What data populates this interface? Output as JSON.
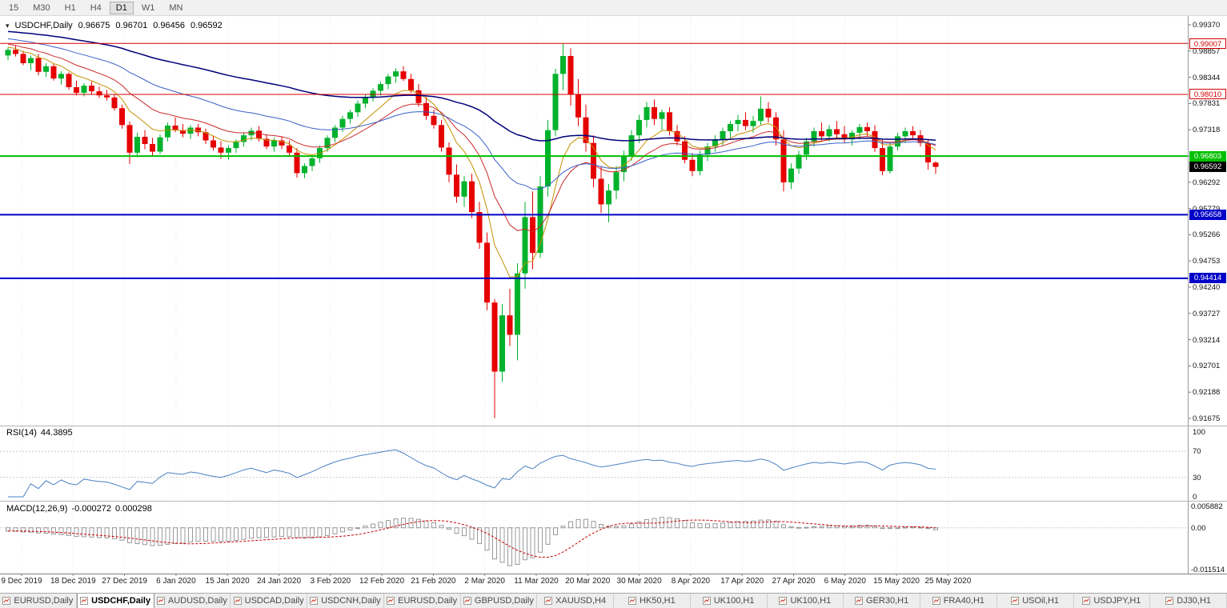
{
  "toolbar": {
    "periods": [
      "15",
      "M30",
      "H1",
      "H4",
      "D1",
      "W1",
      "MN"
    ],
    "active_period": "D1"
  },
  "window": {
    "title_icon": "▾"
  },
  "chart_data": {
    "type": "candlestick",
    "symbol_label": "USDCHF,Daily",
    "ohlc": {
      "open": "0.96675",
      "high": "0.96701",
      "low": "0.96456",
      "close": "0.96592"
    },
    "price_axis_labels": [
      "0.99370",
      "0.98857",
      "0.98344",
      "0.97831",
      "0.97318",
      "0.96805",
      "0.96292",
      "0.95779",
      "0.95266",
      "0.94753",
      "0.94240",
      "0.93727",
      "0.93214",
      "0.92701",
      "0.92188",
      "0.91675"
    ],
    "price_axis_range": [
      0.91675,
      0.9937
    ],
    "hlines": [
      {
        "price": 0.99007,
        "label": "0.99007",
        "color": "#d40000",
        "width": 1,
        "tag_style": "outline"
      },
      {
        "price": 0.9801,
        "label": "0.98010",
        "color": "#d40000",
        "width": 1,
        "tag_style": "outline"
      },
      {
        "price": 0.96803,
        "label": "0.96803",
        "color": "#00c000",
        "width": 2,
        "tag_style": "solid"
      },
      {
        "price": 0.95658,
        "label": "0.95658",
        "color": "#0000c8",
        "width": 2,
        "tag_style": "solid"
      },
      {
        "price": 0.94414,
        "label": "0.94414",
        "color": "#0000c8",
        "width": 2,
        "tag_style": "solid"
      }
    ],
    "current_price": {
      "price": 0.96592,
      "label": "0.96592",
      "color": "#000000"
    },
    "date_labels": [
      "9 Dec 2019",
      "18 Dec 2019",
      "27 Dec 2019",
      "6 Jan 2020",
      "15 Jan 2020",
      "24 Jan 2020",
      "3 Feb 2020",
      "12 Feb 2020",
      "21 Feb 2020",
      "2 Mar 2020",
      "11 Mar 2020",
      "20 Mar 2020",
      "30 Mar 2020",
      "8 Apr 2020",
      "17 Apr 2020",
      "27 Apr 2020",
      "6 May 2020",
      "15 May 2020",
      "25 May 2020"
    ],
    "up_color": "#00b22c",
    "down_color": "#e60000",
    "ma_colors": {
      "fast": "#c49000",
      "medium": "#cc2929",
      "slow": "#3a5fc8",
      "slower": "#00007a"
    },
    "candles": [
      [
        0.9877,
        0.9893,
        0.9868,
        0.9888
      ],
      [
        0.9888,
        0.9896,
        0.9875,
        0.988
      ],
      [
        0.988,
        0.9886,
        0.9858,
        0.9862
      ],
      [
        0.9862,
        0.9877,
        0.9848,
        0.9872
      ],
      [
        0.9872,
        0.988,
        0.9838,
        0.9845
      ],
      [
        0.9845,
        0.9862,
        0.9835,
        0.9856
      ],
      [
        0.9856,
        0.9861,
        0.9828,
        0.9832
      ],
      [
        0.9832,
        0.9846,
        0.982,
        0.9841
      ],
      [
        0.9841,
        0.9844,
        0.981,
        0.9815
      ],
      [
        0.9815,
        0.9828,
        0.9799,
        0.9804
      ],
      [
        0.9804,
        0.9823,
        0.9797,
        0.9818
      ],
      [
        0.9818,
        0.9826,
        0.9801,
        0.9807
      ],
      [
        0.9807,
        0.9816,
        0.9794,
        0.9799
      ],
      [
        0.9799,
        0.981,
        0.9789,
        0.9795
      ],
      [
        0.9795,
        0.9801,
        0.9769,
        0.9774
      ],
      [
        0.9774,
        0.9781,
        0.9734,
        0.9741
      ],
      [
        0.9741,
        0.9748,
        0.9665,
        0.9687
      ],
      [
        0.9687,
        0.9726,
        0.9678,
        0.9718
      ],
      [
        0.9718,
        0.9731,
        0.9694,
        0.9704
      ],
      [
        0.9704,
        0.9716,
        0.9679,
        0.9689
      ],
      [
        0.9689,
        0.9723,
        0.9684,
        0.9717
      ],
      [
        0.9717,
        0.9746,
        0.9709,
        0.974
      ],
      [
        0.974,
        0.9756,
        0.9727,
        0.9731
      ],
      [
        0.9731,
        0.9743,
        0.9717,
        0.9724
      ],
      [
        0.9724,
        0.9741,
        0.9714,
        0.9736
      ],
      [
        0.9736,
        0.9743,
        0.9719,
        0.9727
      ],
      [
        0.9727,
        0.9734,
        0.9704,
        0.9711
      ],
      [
        0.9711,
        0.972,
        0.9691,
        0.9697
      ],
      [
        0.9697,
        0.9709,
        0.9675,
        0.9687
      ],
      [
        0.9687,
        0.9701,
        0.9673,
        0.9696
      ],
      [
        0.9696,
        0.9713,
        0.9687,
        0.9708
      ],
      [
        0.9708,
        0.9726,
        0.9699,
        0.9721
      ],
      [
        0.9721,
        0.9736,
        0.9711,
        0.973
      ],
      [
        0.973,
        0.9739,
        0.9709,
        0.9714
      ],
      [
        0.9714,
        0.9723,
        0.9694,
        0.9699
      ],
      [
        0.9699,
        0.9716,
        0.9689,
        0.9711
      ],
      [
        0.9711,
        0.9719,
        0.9694,
        0.9701
      ],
      [
        0.9701,
        0.9711,
        0.9679,
        0.9687
      ],
      [
        0.9687,
        0.9696,
        0.9638,
        0.9647
      ],
      [
        0.9647,
        0.9666,
        0.9637,
        0.9661
      ],
      [
        0.9661,
        0.9681,
        0.9651,
        0.9676
      ],
      [
        0.9676,
        0.9701,
        0.9667,
        0.9696
      ],
      [
        0.9696,
        0.9721,
        0.9689,
        0.9716
      ],
      [
        0.9716,
        0.9741,
        0.9707,
        0.9736
      ],
      [
        0.9736,
        0.9759,
        0.9727,
        0.9753
      ],
      [
        0.9753,
        0.9771,
        0.9744,
        0.9766
      ],
      [
        0.9766,
        0.9789,
        0.9757,
        0.9783
      ],
      [
        0.9783,
        0.9801,
        0.9774,
        0.9796
      ],
      [
        0.9796,
        0.9813,
        0.9787,
        0.9808
      ],
      [
        0.9808,
        0.9826,
        0.9799,
        0.9821
      ],
      [
        0.9821,
        0.9841,
        0.9811,
        0.9836
      ],
      [
        0.9836,
        0.9852,
        0.9824,
        0.9846
      ],
      [
        0.9846,
        0.9856,
        0.9827,
        0.9831
      ],
      [
        0.9831,
        0.9841,
        0.9804,
        0.9809
      ],
      [
        0.9809,
        0.9821,
        0.9777,
        0.9784
      ],
      [
        0.9784,
        0.9796,
        0.9751,
        0.9759
      ],
      [
        0.9759,
        0.9771,
        0.9734,
        0.9741
      ],
      [
        0.9741,
        0.9751,
        0.9689,
        0.9697
      ],
      [
        0.9697,
        0.9707,
        0.9629,
        0.9644
      ],
      [
        0.9644,
        0.9664,
        0.9589,
        0.9601
      ],
      [
        0.9601,
        0.9641,
        0.9581,
        0.9631
      ],
      [
        0.9631,
        0.9646,
        0.9559,
        0.9571
      ],
      [
        0.9571,
        0.9591,
        0.9499,
        0.9511
      ],
      [
        0.9511,
        0.9531,
        0.9379,
        0.9394
      ],
      [
        0.9394,
        0.9401,
        0.9168,
        0.9259
      ],
      [
        0.9259,
        0.9391,
        0.9239,
        0.9369
      ],
      [
        0.9369,
        0.9421,
        0.9309,
        0.9331
      ],
      [
        0.9331,
        0.9471,
        0.9281,
        0.9451
      ],
      [
        0.9451,
        0.9591,
        0.9421,
        0.9561
      ],
      [
        0.9561,
        0.9611,
        0.9459,
        0.9491
      ],
      [
        0.9491,
        0.9641,
        0.9481,
        0.9621
      ],
      [
        0.9621,
        0.9751,
        0.9601,
        0.9731
      ],
      [
        0.9731,
        0.9851,
        0.9719,
        0.9841
      ],
      [
        0.9841,
        0.9901,
        0.9809,
        0.9876
      ],
      [
        0.9876,
        0.9891,
        0.9779,
        0.9801
      ],
      [
        0.9801,
        0.9831,
        0.9739,
        0.9756
      ],
      [
        0.9756,
        0.9781,
        0.9689,
        0.9706
      ],
      [
        0.9706,
        0.9721,
        0.9619,
        0.9636
      ],
      [
        0.9636,
        0.9661,
        0.9569,
        0.9586
      ],
      [
        0.9586,
        0.9626,
        0.9551,
        0.9613
      ],
      [
        0.9613,
        0.9661,
        0.9596,
        0.9649
      ],
      [
        0.9649,
        0.9691,
        0.9631,
        0.9681
      ],
      [
        0.9681,
        0.9731,
        0.9671,
        0.9721
      ],
      [
        0.9721,
        0.9761,
        0.9706,
        0.9751
      ],
      [
        0.9751,
        0.9786,
        0.9736,
        0.9776
      ],
      [
        0.9776,
        0.9791,
        0.9741,
        0.9753
      ],
      [
        0.9753,
        0.9771,
        0.9731,
        0.9766
      ],
      [
        0.9766,
        0.9776,
        0.9721,
        0.9729
      ],
      [
        0.9729,
        0.9741,
        0.9701,
        0.9709
      ],
      [
        0.9709,
        0.9719,
        0.9666,
        0.9673
      ],
      [
        0.9673,
        0.9686,
        0.9641,
        0.9651
      ],
      [
        0.9651,
        0.9691,
        0.9643,
        0.9683
      ],
      [
        0.9683,
        0.9706,
        0.9671,
        0.9699
      ],
      [
        0.9699,
        0.9721,
        0.9689,
        0.9713
      ],
      [
        0.9713,
        0.9736,
        0.9701,
        0.9729
      ],
      [
        0.9729,
        0.9749,
        0.9716,
        0.9743
      ],
      [
        0.9743,
        0.9761,
        0.9729,
        0.9751
      ],
      [
        0.9751,
        0.9766,
        0.9731,
        0.9739
      ],
      [
        0.9739,
        0.9759,
        0.9726,
        0.9749
      ],
      [
        0.9749,
        0.9797,
        0.9741,
        0.9773
      ],
      [
        0.9773,
        0.9786,
        0.9746,
        0.9756
      ],
      [
        0.9756,
        0.9766,
        0.9701,
        0.9713
      ],
      [
        0.9713,
        0.9731,
        0.9611,
        0.9629
      ],
      [
        0.9629,
        0.9666,
        0.9616,
        0.9656
      ],
      [
        0.9656,
        0.9691,
        0.9646,
        0.9683
      ],
      [
        0.9683,
        0.9716,
        0.9673,
        0.9709
      ],
      [
        0.9709,
        0.9736,
        0.9699,
        0.9729
      ],
      [
        0.9729,
        0.9746,
        0.9711,
        0.9719
      ],
      [
        0.9719,
        0.9741,
        0.9709,
        0.9733
      ],
      [
        0.9733,
        0.9749,
        0.9716,
        0.9723
      ],
      [
        0.9723,
        0.9739,
        0.9706,
        0.9713
      ],
      [
        0.9713,
        0.9731,
        0.9701,
        0.9726
      ],
      [
        0.9726,
        0.9743,
        0.9713,
        0.9737
      ],
      [
        0.9737,
        0.9746,
        0.9719,
        0.9729
      ],
      [
        0.9729,
        0.9741,
        0.9689,
        0.9696
      ],
      [
        0.9696,
        0.9713,
        0.9643,
        0.9651
      ],
      [
        0.9651,
        0.9706,
        0.9646,
        0.9699
      ],
      [
        0.9699,
        0.9726,
        0.9691,
        0.9719
      ],
      [
        0.9719,
        0.9736,
        0.9706,
        0.9729
      ],
      [
        0.9729,
        0.9739,
        0.9713,
        0.9721
      ],
      [
        0.9721,
        0.9731,
        0.9699,
        0.9706
      ],
      [
        0.9706,
        0.9713,
        0.9654,
        0.9668
      ],
      [
        0.96675,
        0.96701,
        0.96456,
        0.96592
      ]
    ]
  },
  "rsi": {
    "name": "RSI(14)",
    "value": "44.3895",
    "axis_labels": [
      "100",
      "70",
      "30",
      "0"
    ],
    "levels": [
      70,
      30
    ],
    "line_color": "#4a82c3"
  },
  "macd": {
    "name": "MACD(12,26,9)",
    "main_value": "-0.000272",
    "signal_value": "0.000298",
    "axis_labels": [
      "0.005882",
      "0.00",
      "-0.011514"
    ],
    "histogram_color": "#999999",
    "signal_color": "#cc0000"
  },
  "tabs": {
    "active_index": 1,
    "items": [
      "EURUSD,Daily",
      "USDCHF,Daily",
      "AUDUSD,Daily",
      "USDCAD,Daily",
      "USDCNH,Daily",
      "EURUSD,Daily",
      "GBPUSD,Daily",
      "XAUUSD,H4",
      "HK50,H1",
      "UK100,H1",
      "UK100,H1",
      "GER30,H1",
      "FRA40,H1",
      "USOil,H1",
      "USDJPY,H1",
      "DJ30,H1"
    ]
  }
}
